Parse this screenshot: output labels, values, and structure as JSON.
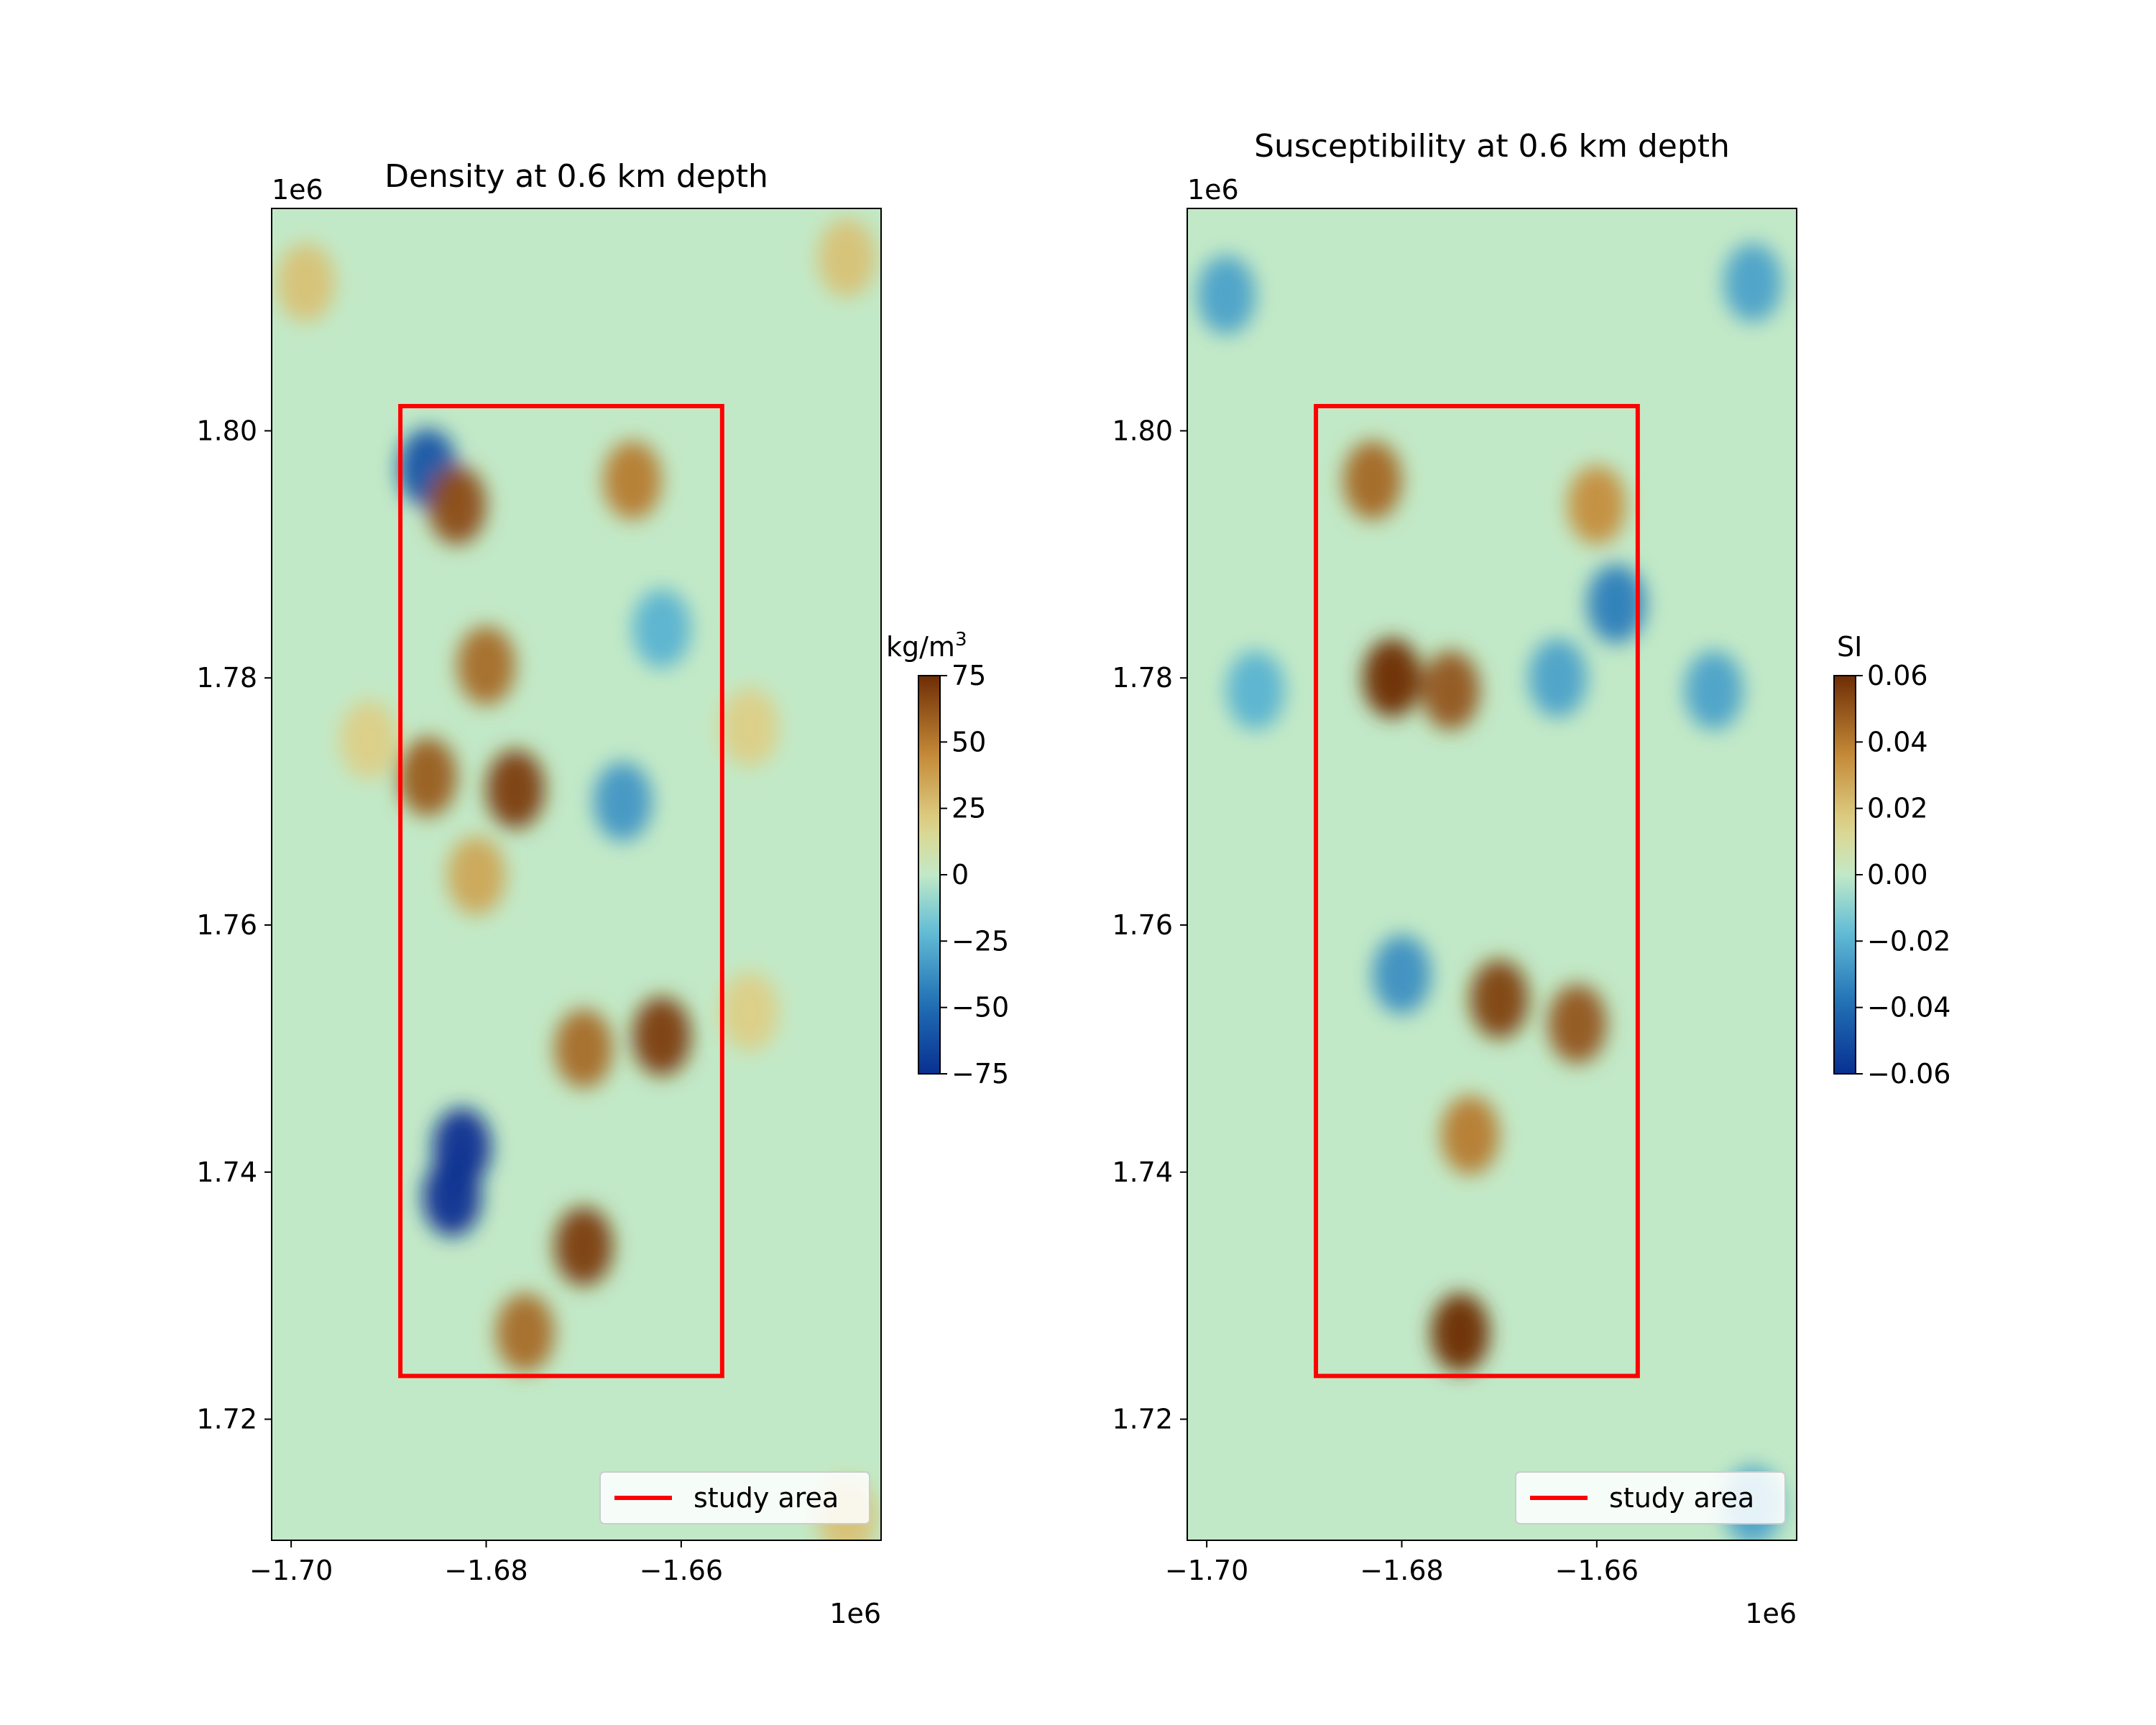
{
  "chart_data": [
    {
      "type": "heatmap",
      "title": "Density at 0.6 km depth",
      "x_offset_label": "1e6",
      "y_offset_label": "1e6",
      "x_ticks": [
        -1.7,
        -1.68,
        -1.66
      ],
      "x_tick_labels": [
        "−1.70",
        "−1.68",
        "−1.66"
      ],
      "y_ticks": [
        1.72,
        1.74,
        1.76,
        1.78,
        1.8
      ],
      "y_tick_labels": [
        "1.72",
        "1.74",
        "1.76",
        "1.78",
        "1.80"
      ],
      "xlim": [
        -1.702,
        -1.6395
      ],
      "ylim": [
        1.7102,
        1.818
      ],
      "colorbar": {
        "label_base": "kg/m",
        "label_exp": "3",
        "range": [
          -75,
          75
        ],
        "ticks": [
          75,
          50,
          25,
          0,
          -25,
          -50,
          -75
        ],
        "tick_labels": [
          "75",
          "50",
          "25",
          "0",
          "−25",
          "−50",
          "−75"
        ],
        "colormap": "brown-tan-green-blue"
      },
      "study_area": {
        "x": [
          -1.6888,
          -1.6558
        ],
        "y": [
          1.7235,
          1.802
        ],
        "color": "#ff0000"
      },
      "legend": {
        "label": "study area",
        "placement": "lower-right"
      },
      "background_value": 0,
      "anomalies": [
        {
          "x": -1.6825,
          "y": 1.742,
          "value": -75
        },
        {
          "x": -1.6835,
          "y": 1.738,
          "value": -75
        },
        {
          "x": -1.686,
          "y": 1.797,
          "value": -60
        },
        {
          "x": -1.666,
          "y": 1.77,
          "value": -35
        },
        {
          "x": -1.662,
          "y": 1.784,
          "value": -25
        },
        {
          "x": -1.683,
          "y": 1.794,
          "value": 65
        },
        {
          "x": -1.677,
          "y": 1.771,
          "value": 70
        },
        {
          "x": -1.68,
          "y": 1.781,
          "value": 55
        },
        {
          "x": -1.686,
          "y": 1.772,
          "value": 60
        },
        {
          "x": -1.662,
          "y": 1.751,
          "value": 70
        },
        {
          "x": -1.67,
          "y": 1.75,
          "value": 55
        },
        {
          "x": -1.67,
          "y": 1.734,
          "value": 70
        },
        {
          "x": -1.676,
          "y": 1.727,
          "value": 55
        },
        {
          "x": -1.665,
          "y": 1.796,
          "value": 50
        },
        {
          "x": -1.681,
          "y": 1.764,
          "value": 35
        },
        {
          "x": -1.6985,
          "y": 1.812,
          "value": 25
        },
        {
          "x": -1.643,
          "y": 1.814,
          "value": 25
        },
        {
          "x": -1.692,
          "y": 1.775,
          "value": 20
        },
        {
          "x": -1.653,
          "y": 1.776,
          "value": 20
        },
        {
          "x": -1.653,
          "y": 1.753,
          "value": 20
        },
        {
          "x": -1.643,
          "y": 1.712,
          "value": 25
        }
      ]
    },
    {
      "type": "heatmap",
      "title": "Susceptibility at 0.6 km depth",
      "x_offset_label": "1e6",
      "y_offset_label": "1e6",
      "x_ticks": [
        -1.7,
        -1.68,
        -1.66
      ],
      "x_tick_labels": [
        "−1.70",
        "−1.68",
        "−1.66"
      ],
      "y_ticks": [
        1.72,
        1.74,
        1.76,
        1.78,
        1.8
      ],
      "y_tick_labels": [
        "1.72",
        "1.74",
        "1.76",
        "1.78",
        "1.80"
      ],
      "xlim": [
        -1.702,
        -1.6395
      ],
      "ylim": [
        1.7102,
        1.818
      ],
      "colorbar": {
        "label_base": "SI",
        "label_exp": "",
        "range": [
          -0.06,
          0.06
        ],
        "ticks": [
          0.06,
          0.04,
          0.02,
          0.0,
          -0.02,
          -0.04,
          -0.06
        ],
        "tick_labels": [
          "0.06",
          "0.04",
          "0.02",
          "0.00",
          "−0.02",
          "−0.04",
          "−0.06"
        ],
        "colormap": "brown-tan-green-blue"
      },
      "study_area": {
        "x": [
          -1.6888,
          -1.6558
        ],
        "y": [
          1.7235,
          1.802
        ],
        "color": "#ff0000"
      },
      "legend": {
        "label": "study area",
        "placement": "lower-right"
      },
      "background_value": 0,
      "anomalies": [
        {
          "x": -1.698,
          "y": 1.811,
          "value": -0.025
        },
        {
          "x": -1.644,
          "y": 1.812,
          "value": -0.025
        },
        {
          "x": -1.648,
          "y": 1.779,
          "value": -0.025
        },
        {
          "x": -1.695,
          "y": 1.779,
          "value": -0.02
        },
        {
          "x": -1.68,
          "y": 1.756,
          "value": -0.03
        },
        {
          "x": -1.658,
          "y": 1.786,
          "value": -0.035
        },
        {
          "x": -1.664,
          "y": 1.78,
          "value": -0.025
        },
        {
          "x": -1.681,
          "y": 1.78,
          "value": 0.06
        },
        {
          "x": -1.675,
          "y": 1.779,
          "value": 0.05
        },
        {
          "x": -1.683,
          "y": 1.796,
          "value": 0.045
        },
        {
          "x": -1.66,
          "y": 1.794,
          "value": 0.035
        },
        {
          "x": -1.67,
          "y": 1.754,
          "value": 0.055
        },
        {
          "x": -1.662,
          "y": 1.752,
          "value": 0.05
        },
        {
          "x": -1.673,
          "y": 1.743,
          "value": 0.04
        },
        {
          "x": -1.674,
          "y": 1.727,
          "value": 0.06
        },
        {
          "x": -1.644,
          "y": 1.713,
          "value": -0.025
        }
      ]
    }
  ]
}
